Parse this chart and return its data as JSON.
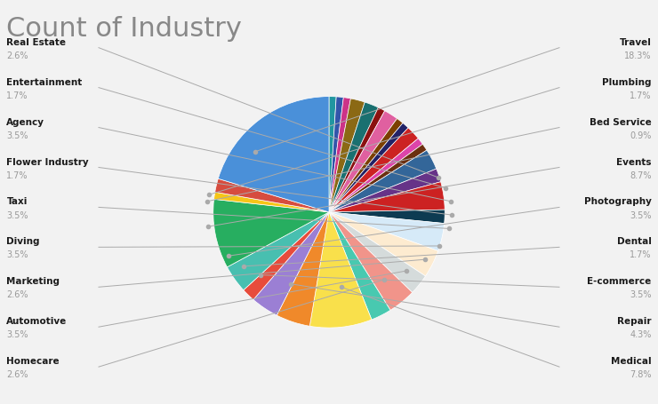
{
  "title": "Count of Industry",
  "title_color": "#888888",
  "title_fontsize": 22,
  "background_color": "#f2f2f2",
  "slices": [
    {
      "label": "s_teal2",
      "pct": 0.9,
      "color": "#2196A0"
    },
    {
      "label": "s_blue1",
      "pct": 0.9,
      "color": "#3355AA"
    },
    {
      "label": "s_pink1",
      "pct": 0.9,
      "color": "#CC3388"
    },
    {
      "label": "s_brown1",
      "pct": 1.8,
      "color": "#8B6914"
    },
    {
      "label": "s_teal1",
      "pct": 1.8,
      "color": "#1A7070"
    },
    {
      "label": "s_darkred1",
      "pct": 0.9,
      "color": "#8B1010"
    },
    {
      "label": "s_pink2",
      "pct": 1.8,
      "color": "#E060A0"
    },
    {
      "label": "s_brown2",
      "pct": 0.9,
      "color": "#7B3F00"
    },
    {
      "label": "s_navy1",
      "pct": 0.9,
      "color": "#222266"
    },
    {
      "label": "s_red1",
      "pct": 1.8,
      "color": "#CC2222"
    },
    {
      "label": "s_ltpink1",
      "pct": 0.9,
      "color": "#DD44AA"
    },
    {
      "label": "s_brown3",
      "pct": 0.9,
      "color": "#6B3010"
    },
    {
      "label": "Real Estate",
      "pct": 2.6,
      "color": "#336699"
    },
    {
      "label": "Entertainment",
      "pct": 1.7,
      "color": "#663388"
    },
    {
      "label": "Agency",
      "pct": 3.5,
      "color": "#CC2222"
    },
    {
      "label": "Flower Industry",
      "pct": 1.7,
      "color": "#0D3B52"
    },
    {
      "label": "Taxi",
      "pct": 3.5,
      "color": "#D6EAF8"
    },
    {
      "label": "Diving",
      "pct": 3.5,
      "color": "#FDEBD0"
    },
    {
      "label": "Marketing",
      "pct": 2.6,
      "color": "#D5DBDB"
    },
    {
      "label": "Automotive",
      "pct": 3.5,
      "color": "#F1948A"
    },
    {
      "label": "Homecare",
      "pct": 2.6,
      "color": "#48C9B0"
    },
    {
      "label": "Medical",
      "pct": 7.8,
      "color": "#F9E04B"
    },
    {
      "label": "Repair",
      "pct": 4.3,
      "color": "#F0892A"
    },
    {
      "label": "E-commerce",
      "pct": 3.5,
      "color": "#9B7FD4"
    },
    {
      "label": "Dental",
      "pct": 1.7,
      "color": "#E74C3C"
    },
    {
      "label": "Photography",
      "pct": 3.5,
      "color": "#48BFB0"
    },
    {
      "label": "Events",
      "pct": 8.7,
      "color": "#27AE60"
    },
    {
      "label": "Bed Service",
      "pct": 0.9,
      "color": "#F5C518"
    },
    {
      "label": "Plumbing",
      "pct": 1.7,
      "color": "#D64C3F"
    },
    {
      "label": "Travel",
      "pct": 18.3,
      "color": "#4A90D9"
    }
  ],
  "left_labels": [
    {
      "label": "Real Estate",
      "pct": "2.6%"
    },
    {
      "label": "Entertainment",
      "pct": "1.7%"
    },
    {
      "label": "Agency",
      "pct": "3.5%"
    },
    {
      "label": "Flower Industry",
      "pct": "1.7%"
    },
    {
      "label": "Taxi",
      "pct": "3.5%"
    },
    {
      "label": "Diving",
      "pct": "3.5%"
    },
    {
      "label": "Marketing",
      "pct": "2.6%"
    },
    {
      "label": "Automotive",
      "pct": "3.5%"
    },
    {
      "label": "Homecare",
      "pct": "2.6%"
    }
  ],
  "right_labels": [
    {
      "label": "Travel",
      "pct": "18.3%"
    },
    {
      "label": "Plumbing",
      "pct": "1.7%"
    },
    {
      "label": "Bed Service",
      "pct": "0.9%"
    },
    {
      "label": "Events",
      "pct": "8.7%"
    },
    {
      "label": "Photography",
      "pct": "3.5%"
    },
    {
      "label": "Dental",
      "pct": "1.7%"
    },
    {
      "label": "E-commerce",
      "pct": "3.5%"
    },
    {
      "label": "Repair",
      "pct": "4.3%"
    },
    {
      "label": "Medical",
      "pct": "7.8%"
    }
  ]
}
